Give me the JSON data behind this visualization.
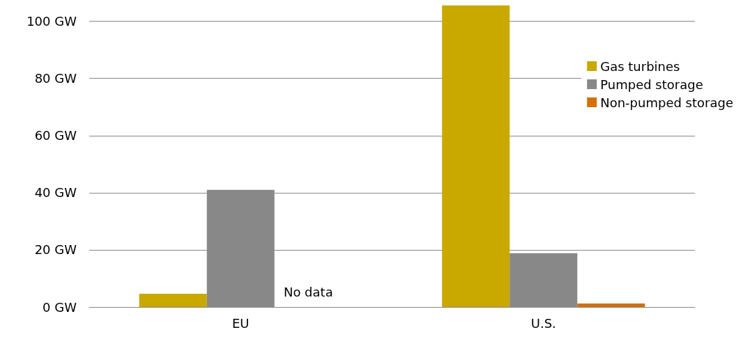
{
  "chart_data": {
    "type": "bar",
    "categories": [
      "EU",
      "U.S."
    ],
    "series": [
      {
        "name": "Gas turbines",
        "color": "#c9a800",
        "values": [
          4.6,
          105.6
        ]
      },
      {
        "name": "Pumped storage",
        "color": "#888888",
        "values": [
          41,
          18.8
        ]
      },
      {
        "name": "Non-pumped storage",
        "color": "#d4700a",
        "values": [
          null,
          1.2
        ]
      }
    ],
    "ylim": [
      0,
      106
    ],
    "yticks": [
      {
        "value": 0,
        "label": "0 GW"
      },
      {
        "value": 20,
        "label": "20 GW"
      },
      {
        "value": 40,
        "label": "40 GW"
      },
      {
        "value": 60,
        "label": "60 GW"
      },
      {
        "value": 80,
        "label": "80 GW"
      },
      {
        "value": 100,
        "label": "100 GW"
      }
    ],
    "grid": "y",
    "legend": "top right",
    "annotations": [
      "No data"
    ]
  }
}
